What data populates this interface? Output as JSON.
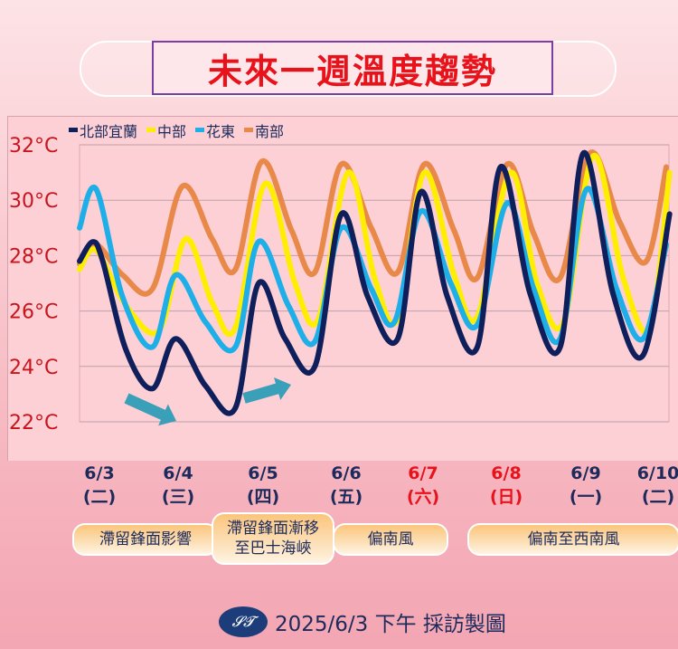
{
  "title": "未來一週溫度趨勢",
  "chart_data": {
    "type": "line",
    "title": "",
    "xlabel": "",
    "ylabel": "",
    "ylim": [
      22,
      32
    ],
    "yticks": [
      "32°C",
      "30°C",
      "28°C",
      "26°C",
      "24°C",
      "22°C"
    ],
    "ytick_values": [
      32,
      30,
      28,
      26,
      24,
      22
    ],
    "grid": true,
    "legend": "top-left",
    "categories": [
      {
        "date": "6/3",
        "weekday": "(二)",
        "weekend": false
      },
      {
        "date": "6/4",
        "weekday": "(三)",
        "weekend": false
      },
      {
        "date": "6/5",
        "weekday": "(四)",
        "weekend": false
      },
      {
        "date": "6/6",
        "weekday": "(五)",
        "weekend": false
      },
      {
        "date": "6/7",
        "weekday": "(六)",
        "weekend": true
      },
      {
        "date": "6/8",
        "weekday": "(日)",
        "weekend": true
      },
      {
        "date": "6/9",
        "weekday": "(一)",
        "weekend": false
      },
      {
        "date": "6/10",
        "weekday": "(二)",
        "weekend": false
      }
    ],
    "series": [
      {
        "name": "南部",
        "color": "#e8894a",
        "points": [
          [
            "6/3 06",
            27.7
          ],
          [
            "6/3 11",
            28.4
          ],
          [
            "6/3 19",
            27.3
          ],
          [
            "6/4 04",
            26.8
          ],
          [
            "6/4 13",
            30.5
          ],
          [
            "6/4 22",
            28.6
          ],
          [
            "6/5 05",
            27.5
          ],
          [
            "6/5 13",
            31.4
          ],
          [
            "6/5 22",
            28.9
          ],
          [
            "6/6 05",
            27.4
          ],
          [
            "6/6 13",
            31.3
          ],
          [
            "6/6 22",
            29.0
          ],
          [
            "6/7 06",
            27.4
          ],
          [
            "6/7 14",
            31.3
          ],
          [
            "6/7 23",
            28.9
          ],
          [
            "6/8 06",
            27.2
          ],
          [
            "6/8 15",
            31.3
          ],
          [
            "6/8 23",
            28.8
          ],
          [
            "6/9 07",
            27.2
          ],
          [
            "6/9 16",
            31.7
          ],
          [
            "6/10 01",
            29.2
          ],
          [
            "6/10 09",
            27.8
          ],
          [
            "6/10 15",
            31.2
          ]
        ]
      },
      {
        "name": "中部",
        "color": "#ffee00",
        "points": [
          [
            "6/3 06",
            27.5
          ],
          [
            "6/3 11",
            28.2
          ],
          [
            "6/3 20",
            26.2
          ],
          [
            "6/4 06",
            25.3
          ],
          [
            "6/4 14",
            28.6
          ],
          [
            "6/4 22",
            26.3
          ],
          [
            "6/5 05",
            25.4
          ],
          [
            "6/5 14",
            30.6
          ],
          [
            "6/5 23",
            27.0
          ],
          [
            "6/6 06",
            25.7
          ],
          [
            "6/6 15",
            31.0
          ],
          [
            "6/6 23",
            27.2
          ],
          [
            "6/7 06",
            25.7
          ],
          [
            "6/7 14",
            31.0
          ],
          [
            "6/7 23",
            27.3
          ],
          [
            "6/8 06",
            25.8
          ],
          [
            "6/8 16",
            31.0
          ],
          [
            "6/9 00",
            27.0
          ],
          [
            "6/9 08",
            25.6
          ],
          [
            "6/9 17",
            31.6
          ],
          [
            "6/10 02",
            27.2
          ],
          [
            "6/10 10",
            25.4
          ],
          [
            "6/10 16",
            31.0
          ]
        ]
      },
      {
        "name": "花東",
        "color": "#1eaee8",
        "points": [
          [
            "6/3 06",
            29.0
          ],
          [
            "6/3 11",
            30.4
          ],
          [
            "6/3 19",
            26.5
          ],
          [
            "6/4 04",
            24.7
          ],
          [
            "6/4 11",
            27.3
          ],
          [
            "6/4 20",
            25.6
          ],
          [
            "6/5 05",
            24.7
          ],
          [
            "6/5 12",
            28.5
          ],
          [
            "6/5 21",
            26.2
          ],
          [
            "6/6 05",
            24.9
          ],
          [
            "6/6 13",
            29.0
          ],
          [
            "6/6 22",
            26.8
          ],
          [
            "6/7 05",
            25.6
          ],
          [
            "6/7 13",
            29.6
          ],
          [
            "6/7 22",
            27.0
          ],
          [
            "6/8 06",
            25.5
          ],
          [
            "6/8 15",
            29.9
          ],
          [
            "6/8 23",
            26.8
          ],
          [
            "6/9 07",
            25.0
          ],
          [
            "6/9 15",
            30.4
          ],
          [
            "6/10 00",
            26.8
          ],
          [
            "6/10 08",
            25.0
          ],
          [
            "6/10 15",
            28.4
          ]
        ]
      },
      {
        "name": "北部宜蘭",
        "color": "#0f1f5c",
        "points": [
          [
            "6/3 06",
            27.8
          ],
          [
            "6/3 10",
            28.5
          ],
          [
            "6/3 13",
            27.8
          ],
          [
            "6/3 20",
            24.6
          ],
          [
            "6/4 04",
            23.2
          ],
          [
            "6/4 11",
            25.0
          ],
          [
            "6/4 20",
            23.3
          ],
          [
            "6/5 05",
            22.5
          ],
          [
            "6/5 12",
            27.0
          ],
          [
            "6/5 20",
            25.0
          ],
          [
            "6/6 05",
            24.0
          ],
          [
            "6/6 13",
            29.5
          ],
          [
            "6/6 21",
            26.5
          ],
          [
            "6/7 06",
            25.0
          ],
          [
            "6/7 13",
            30.3
          ],
          [
            "6/7 21",
            26.5
          ],
          [
            "6/8 06",
            24.7
          ],
          [
            "6/8 13",
            31.2
          ],
          [
            "6/8 22",
            26.6
          ],
          [
            "6/9 07",
            24.7
          ],
          [
            "6/9 14",
            31.7
          ],
          [
            "6/9 23",
            26.6
          ],
          [
            "6/10 08",
            24.4
          ],
          [
            "6/10 16",
            29.5
          ]
        ]
      }
    ],
    "legend_order": [
      "北部宜蘭",
      "中部",
      "花東",
      "南部"
    ]
  },
  "weather": [
    {
      "label": "滯留鋒面影響"
    },
    {
      "label": "滯留鋒面漸移\n至巴士海峽"
    },
    {
      "label": "偏南風"
    },
    {
      "label": "偏南至西南風"
    }
  ],
  "arrow_color": "#3a9fb8",
  "footer": {
    "logo": "𝓢𝓣",
    "text": "2025/6/3 下午 採訪製圖"
  }
}
